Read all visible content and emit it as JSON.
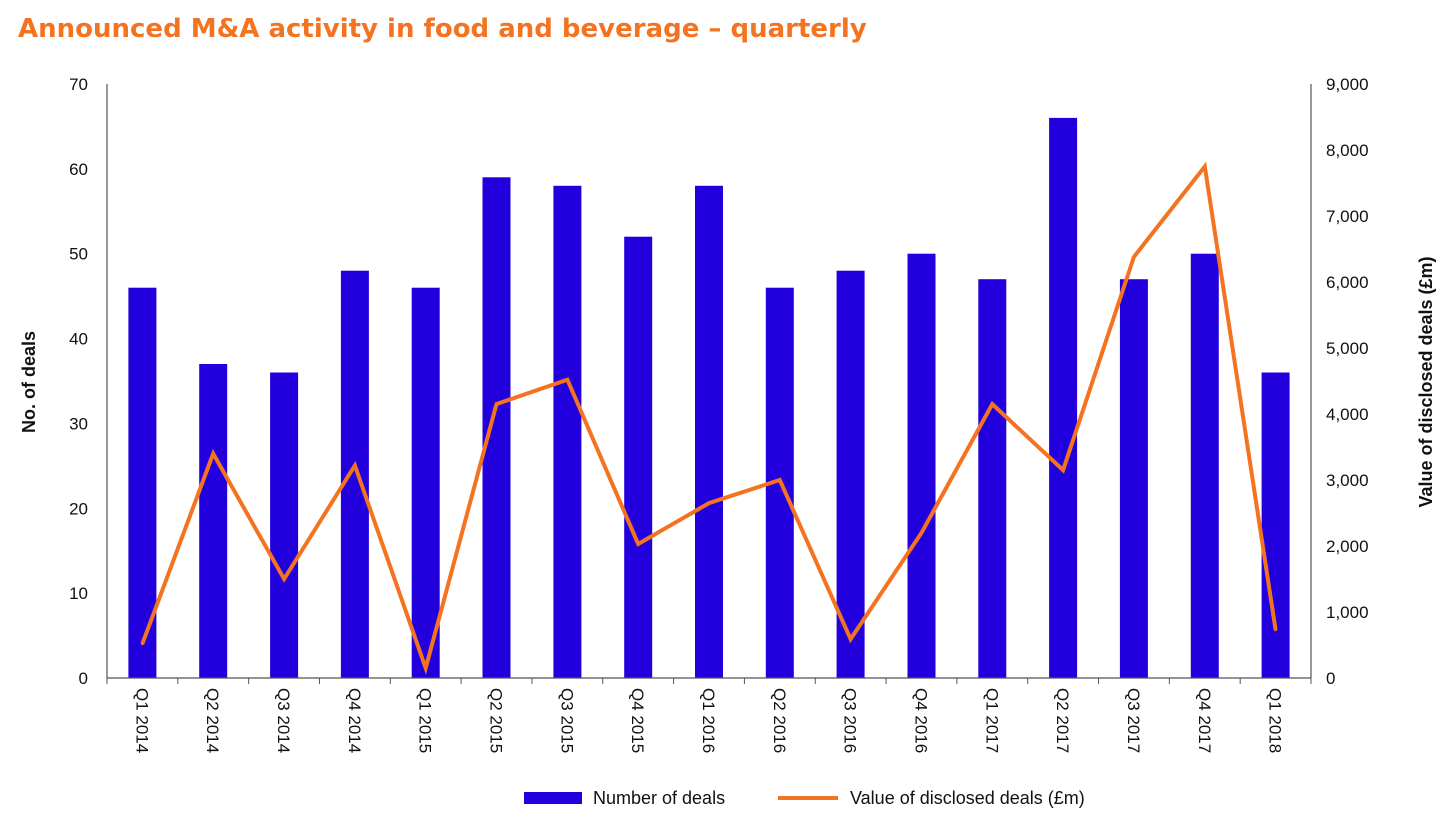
{
  "title": "Announced M&A activity in food and beverage – quarterly",
  "chart_data": {
    "type": "bar",
    "title": "Announced M&A activity in food and beverage – quarterly",
    "categories": [
      "Q1 2014",
      "Q2 2014",
      "Q3 2014",
      "Q4 2014",
      "Q1 2015",
      "Q2 2015",
      "Q3 2015",
      "Q4 2015",
      "Q1 2016",
      "Q2 2016",
      "Q3 2016",
      "Q4 2016",
      "Q1 2017",
      "Q2 2017",
      "Q3 2017",
      "Q4 2017",
      "Q1 2018"
    ],
    "series": [
      {
        "name": "Number of deals",
        "type": "bar",
        "axis": "left",
        "color": "#2200dd",
        "values": [
          46,
          37,
          36,
          48,
          46,
          59,
          58,
          52,
          58,
          46,
          48,
          50,
          47,
          66,
          47,
          50,
          36
        ]
      },
      {
        "name": "Value of disclosed deals (£m)",
        "type": "line",
        "axis": "right",
        "color": "#f47321",
        "values": [
          520,
          3400,
          1500,
          3220,
          150,
          4150,
          4520,
          2030,
          2650,
          3000,
          590,
          2200,
          4150,
          3150,
          6380,
          7750,
          730
        ]
      }
    ],
    "ylabel": "No. of deals",
    "ylabel_right": "Value of disclosed deals (£m)",
    "ylim": [
      0,
      70
    ],
    "ylim_right": [
      0,
      9000
    ],
    "yticks": [
      "0",
      "10",
      "20",
      "30",
      "40",
      "50",
      "60",
      "70"
    ],
    "yticks_right": [
      "0",
      "1,000",
      "2,000",
      "3,000",
      "4,000",
      "5,000",
      "6,000",
      "7,000",
      "8,000",
      "9,000"
    ],
    "grid": false,
    "legend_position": "bottom"
  }
}
